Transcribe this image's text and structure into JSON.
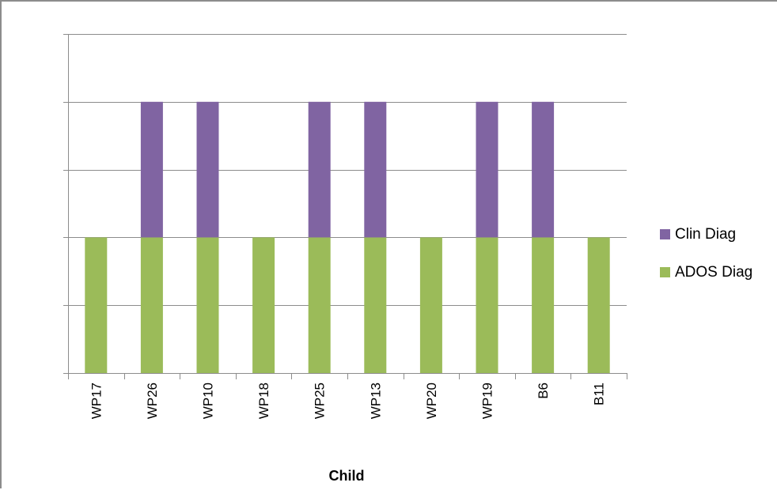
{
  "chart_data": {
    "type": "bar",
    "stacked": true,
    "categories": [
      "WP17",
      "WP26",
      "WP10",
      "WP18",
      "WP25",
      "WP13",
      "WP20",
      "WP19",
      "B6",
      "B11"
    ],
    "series": [
      {
        "name": "ADOS Diag",
        "color": "#9bbb59",
        "values": [
          1,
          1,
          1,
          1,
          1,
          1,
          1,
          1,
          1,
          1
        ]
      },
      {
        "name": "Clin Diag",
        "color": "#8064a2",
        "values": [
          0,
          1,
          1,
          0,
          1,
          1,
          0,
          1,
          1,
          0
        ]
      }
    ],
    "title": "",
    "xlabel": "Child",
    "ylabel": "",
    "ylim": [
      0,
      2.5
    ],
    "y_tick_step": 0.5,
    "y_tick_labels_shown": false,
    "grid": true,
    "legend_position": "right",
    "legend_order": [
      "Clin Diag",
      "ADOS Diag"
    ]
  }
}
